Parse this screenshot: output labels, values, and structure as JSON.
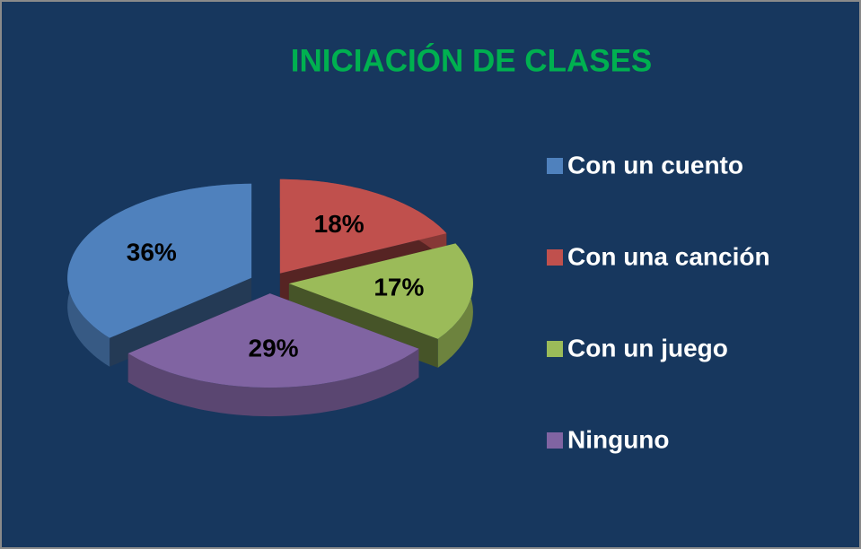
{
  "chart_data": {
    "type": "pie",
    "title": "INICIACIÓN DE CLASES",
    "categories": [
      "Con un cuento",
      "Con una canción",
      "Con un juego",
      "Ninguno"
    ],
    "values": [
      36,
      18,
      17,
      29
    ],
    "value_labels": [
      "36%",
      "18%",
      "17%",
      "29%"
    ],
    "colors": [
      "#4f81bd",
      "#c0504d",
      "#9bbb59",
      "#8064a2"
    ],
    "legend": "right"
  }
}
